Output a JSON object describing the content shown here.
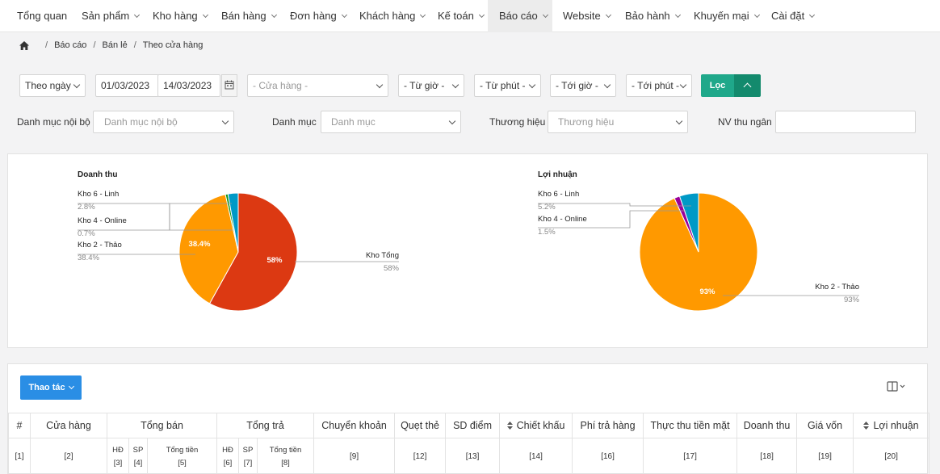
{
  "nav": {
    "items": [
      {
        "label": "Tổng quan",
        "dropdown": false,
        "active": false
      },
      {
        "label": "Sản phẩm",
        "dropdown": true,
        "active": false
      },
      {
        "label": "Kho hàng",
        "dropdown": true,
        "active": false
      },
      {
        "label": "Bán hàng",
        "dropdown": true,
        "active": false
      },
      {
        "label": "Đơn hàng",
        "dropdown": true,
        "active": false
      },
      {
        "label": "Khách hàng",
        "dropdown": true,
        "active": false
      },
      {
        "label": "Kế toán",
        "dropdown": true,
        "active": false
      },
      {
        "label": "Báo cáo",
        "dropdown": true,
        "active": true
      },
      {
        "label": "Website",
        "dropdown": true,
        "active": false
      },
      {
        "label": "Bảo hành",
        "dropdown": true,
        "active": false
      },
      {
        "label": "Khuyến mại",
        "dropdown": true,
        "active": false
      },
      {
        "label": "Cài đặt",
        "dropdown": true,
        "active": false
      }
    ]
  },
  "breadcrumb": [
    "Báo cáo",
    "Bán lẻ",
    "Theo cửa hàng"
  ],
  "filters": {
    "period": "Theo ngày",
    "date_from": "01/03/2023",
    "date_to": "14/03/2023",
    "store_placeholder": "- Cửa hàng -",
    "from_hour": "- Từ giờ -",
    "from_minute": "- Từ phút -",
    "to_hour": "- Tới giờ -",
    "to_minute": "- Tới phút -",
    "filter_button": "Lọc",
    "internal_category_label": "Danh mục nội bộ",
    "internal_category_placeholder": "Danh mục nội bộ",
    "category_label": "Danh mục",
    "category_placeholder": "Danh mục",
    "brand_label": "Thương hiệu",
    "brand_placeholder": "Thương hiệu",
    "cashier_label": "NV thu ngân",
    "cashier_value": ""
  },
  "chart_data": [
    {
      "type": "pie",
      "title": "Doanh thu",
      "slices": [
        {
          "label": "Kho Tổng",
          "value": 58,
          "display": "58%",
          "color": "#dc3912"
        },
        {
          "label": "Kho 2 - Thảo",
          "value": 38.4,
          "display": "38.4%",
          "color": "#ff9900"
        },
        {
          "label": "Kho 4 - Online",
          "value": 0.7,
          "display": "0.7%",
          "color": "#109618"
        },
        {
          "label": "Kho 6 - Linh",
          "value": 2.8,
          "display": "2.8%",
          "color": "#0099c6"
        }
      ]
    },
    {
      "type": "pie",
      "title": "Lợi nhuận",
      "slices": [
        {
          "label": "Kho 2 - Thảo",
          "value": 93,
          "display": "93%",
          "color": "#ff9900"
        },
        {
          "label": "Kho 4 - Online",
          "value": 1.5,
          "display": "1.5%",
          "color": "#990099"
        },
        {
          "label": "Kho 6 - Linh",
          "value": 5.2,
          "display": "5.2%",
          "color": "#0099c6"
        }
      ]
    }
  ],
  "table": {
    "actions_button": "Thao tác",
    "headers": [
      "#",
      "Cửa hàng",
      "Tổng bán",
      "Tổng trả",
      "Chuyển khoản",
      "Quẹt thẻ",
      "SD điểm",
      "Chiết khấu",
      "Phí trả hàng",
      "Thực thu tiền mặt",
      "Doanh thu",
      "Giá vốn",
      "Lợi nhuận"
    ],
    "sub_headers": {
      "hd": "HĐ",
      "sp": "SP",
      "total": "Tổng tiền"
    },
    "col_index": [
      "[1]",
      "[2]",
      "[3]",
      "[4]",
      "[5]",
      "[6]",
      "[7]",
      "[8]",
      "[9]",
      "[12]",
      "[13]",
      "[14]",
      "[16]",
      "[17]",
      "[18]",
      "[19]",
      "[20]"
    ]
  }
}
